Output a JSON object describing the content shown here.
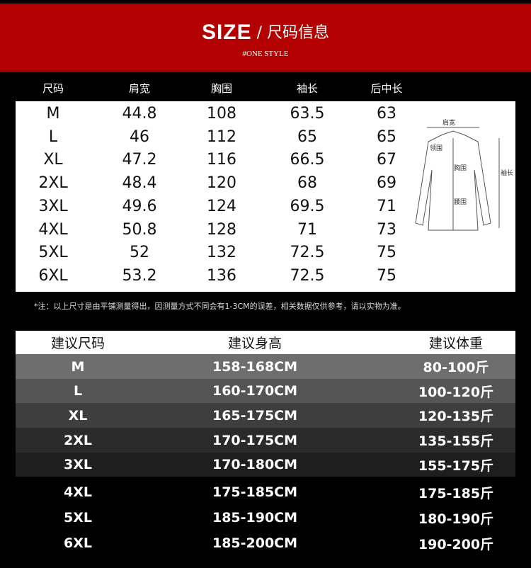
{
  "banner": {
    "title_big": "SIZE",
    "title_rest": " / 尺码信息",
    "subtitle": "#ONE STYLE",
    "color": "#b30000"
  },
  "size_table": {
    "headers": [
      "尺码",
      "肩宽",
      "胸围",
      "袖长",
      "后中长"
    ],
    "rows": [
      [
        "M",
        "44.8",
        "108",
        "63.5",
        "63"
      ],
      [
        "L",
        "46",
        "112",
        "65",
        "65"
      ],
      [
        "XL",
        "47.2",
        "116",
        "66.5",
        "67"
      ],
      [
        "2XL",
        "48.4",
        "120",
        "68",
        "69"
      ],
      [
        "3XL",
        "49.6",
        "124",
        "69.5",
        "71"
      ],
      [
        "4XL",
        "50.8",
        "128",
        "71",
        "73"
      ],
      [
        "5XL",
        "52",
        "132",
        "72.5",
        "75"
      ],
      [
        "6XL",
        "53.2",
        "136",
        "72.5",
        "75"
      ]
    ],
    "diagram_labels": {
      "shoulder": "肩宽",
      "collar": "领围",
      "chest": "胸围",
      "waist": "腰围",
      "sleeve": "袖长"
    }
  },
  "note": "*注：以上尺寸是由平铺测量得出，因测量方式不同会有1-3CM的误差，相关数据仅供参考，请以实物为准。",
  "recommend_table": {
    "headers": [
      "建议尺码",
      "建议身高",
      "建议体重"
    ],
    "rows": [
      [
        "M",
        "158-168CM",
        "80-100斤"
      ],
      [
        "L",
        "160-170CM",
        "100-120斤"
      ],
      [
        "XL",
        "165-175CM",
        "120-135斤"
      ],
      [
        "2XL",
        "170-175CM",
        "135-155斤"
      ],
      [
        "3XL",
        "170-180CM",
        "155-175斤"
      ],
      [
        "4XL",
        "175-185CM",
        "175-185斤"
      ],
      [
        "5XL",
        "185-190CM",
        "180-190斤"
      ],
      [
        "6XL",
        "185-200CM",
        "190-200斤"
      ]
    ]
  }
}
